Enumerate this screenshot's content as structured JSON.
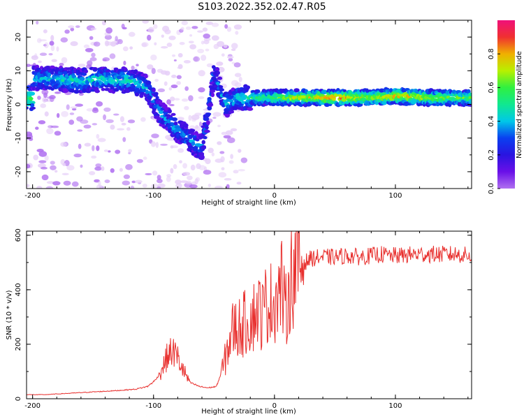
{
  "title": "S103.2022.352.02.47.R05",
  "colors": {
    "snr_line": "#e8302e",
    "spectral_cmap": [
      "#ffffff",
      "#e6cff8",
      "#b070f0",
      "#6a10e8",
      "#2a14e0",
      "#0a40f0",
      "#00c8e8",
      "#10e890",
      "#30f040",
      "#b8f000",
      "#f0b000",
      "#f03030",
      "#f0107a"
    ]
  },
  "chart_data": [
    {
      "type": "heatmap",
      "title": "S103.2022.352.02.47.R05",
      "xlabel": "Height of straight line (km)",
      "ylabel": "Frequency (Hz)",
      "xlim": [
        -205,
        163
      ],
      "ylim": [
        -25,
        25
      ],
      "xticks": [
        "-200",
        "-100",
        "0",
        "100"
      ],
      "xtick_values": [
        -200,
        -100,
        0,
        100
      ],
      "yticks": [
        "-20",
        "-10",
        "0",
        "10",
        "20"
      ],
      "ytick_values": [
        -20,
        -10,
        0,
        10,
        20
      ],
      "colorbar": {
        "label": "Normalized spectral amplitude",
        "range": [
          0,
          1
        ],
        "ticks": [
          "0.0",
          "0.2",
          "0.4",
          "0.6",
          "0.8"
        ],
        "tick_values": [
          0.0,
          0.2,
          0.4,
          0.6,
          0.8
        ]
      },
      "ridge": [
        {
          "x": -200,
          "f": 8.0,
          "amp": 0.35
        },
        {
          "x": -180,
          "f": 7.5,
          "amp": 0.45
        },
        {
          "x": -160,
          "f": 7.0,
          "amp": 0.45
        },
        {
          "x": -140,
          "f": 7.5,
          "amp": 0.45
        },
        {
          "x": -120,
          "f": 7.0,
          "amp": 0.45
        },
        {
          "x": -105,
          "f": 5.0,
          "amp": 0.4
        },
        {
          "x": -95,
          "f": -2.0,
          "amp": 0.35
        },
        {
          "x": -85,
          "f": -6.0,
          "amp": 0.35
        },
        {
          "x": -75,
          "f": -9.0,
          "amp": 0.35
        },
        {
          "x": -60,
          "f": -13.0,
          "amp": 0.35
        },
        {
          "x": -50,
          "f": 9.0,
          "amp": 0.3
        },
        {
          "x": -40,
          "f": 0.0,
          "amp": 0.4
        },
        {
          "x": -30,
          "f": 2.0,
          "amp": 0.45
        },
        {
          "x": -10,
          "f": 2.0,
          "amp": 0.55
        },
        {
          "x": 0,
          "f": 2.0,
          "amp": 0.6
        },
        {
          "x": 20,
          "f": 2.0,
          "amp": 0.7
        },
        {
          "x": 50,
          "f": 2.0,
          "amp": 0.85
        },
        {
          "x": 80,
          "f": 2.0,
          "amp": 0.7
        },
        {
          "x": 100,
          "f": 2.5,
          "amp": 0.8
        },
        {
          "x": 130,
          "f": 2.0,
          "amp": 0.7
        },
        {
          "x": 160,
          "f": 2.0,
          "amp": 0.6
        }
      ]
    },
    {
      "type": "line",
      "xlabel": "Height of straight line (km)",
      "ylabel": "SNR (10 * v/v)",
      "xlim": [
        -205,
        163
      ],
      "ylim": [
        0,
        615
      ],
      "xticks": [
        "-200",
        "-100",
        "0",
        "100"
      ],
      "xtick_values": [
        -200,
        -100,
        0,
        100
      ],
      "yticks": [
        "0",
        "200",
        "400",
        "600"
      ],
      "ytick_values": [
        0,
        200,
        400,
        600
      ],
      "series": [
        {
          "x": [
            -205,
            -190,
            -170,
            -150,
            -130,
            -115,
            -105,
            -98,
            -92,
            -88,
            -84,
            -80,
            -75,
            -70,
            -62,
            -55,
            -48,
            -42,
            -38,
            -34,
            -30,
            -26,
            -22,
            -18,
            -14,
            -10,
            -6,
            -2,
            2,
            6,
            9,
            12,
            16,
            20,
            25,
            30,
            40,
            50,
            60,
            70,
            80,
            88,
            95,
            105,
            115,
            122,
            130,
            140,
            150,
            163
          ],
          "y": [
            15,
            15,
            20,
            25,
            30,
            35,
            45,
            70,
            120,
            160,
            175,
            150,
            100,
            60,
            45,
            40,
            45,
            120,
            200,
            260,
            260,
            270,
            290,
            300,
            330,
            310,
            360,
            350,
            380,
            420,
            300,
            420,
            470,
            490,
            500,
            515,
            520,
            520,
            525,
            520,
            525,
            530,
            525,
            525,
            530,
            530,
            530,
            530,
            530,
            525
          ]
        }
      ]
    }
  ]
}
